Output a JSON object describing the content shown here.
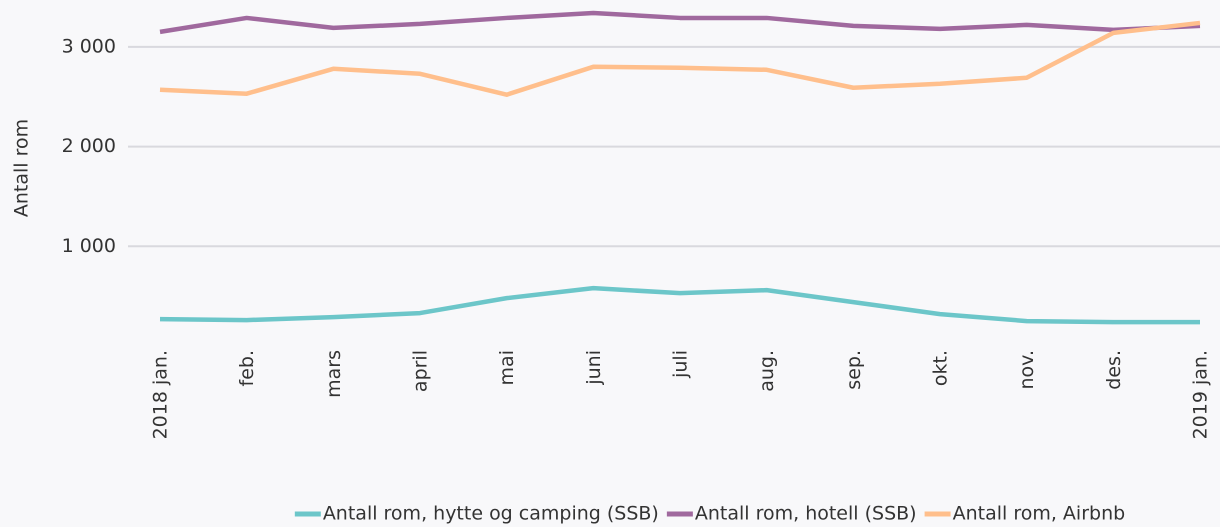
{
  "chart_data": {
    "type": "line",
    "y_label": "Antall rom",
    "categories": [
      "2018 jan.",
      "feb.",
      "mars",
      "april",
      "mai",
      "juni",
      "juli",
      "aug.",
      "sep.",
      "okt.",
      "nov.",
      "des.",
      "2019 jan."
    ],
    "series": [
      {
        "name": "Antall rom, hytte og camping (SSB)",
        "color": "#6cc6c9",
        "values": [
          270,
          260,
          290,
          330,
          480,
          580,
          530,
          560,
          440,
          320,
          250,
          240,
          240
        ]
      },
      {
        "name": "Antall rom, hotell (SSB)",
        "color": "#a0699e",
        "values": [
          3150,
          3290,
          3190,
          3230,
          3290,
          3340,
          3290,
          3290,
          3210,
          3180,
          3220,
          3170,
          3210
        ]
      },
      {
        "name": "Antall rom, Airbnb",
        "color": "#ffbf8c",
        "values": [
          2570,
          2530,
          2780,
          2730,
          2520,
          2800,
          2790,
          2770,
          2590,
          2630,
          2690,
          3140,
          3240
        ]
      }
    ],
    "ylim": [
      0,
      3500
    ],
    "yticks": [
      {
        "value": 1000,
        "label": "1 000"
      },
      {
        "value": 2000,
        "label": "2 000"
      },
      {
        "value": 3000,
        "label": "3 000"
      }
    ],
    "grid": true,
    "legend": "bottom"
  }
}
